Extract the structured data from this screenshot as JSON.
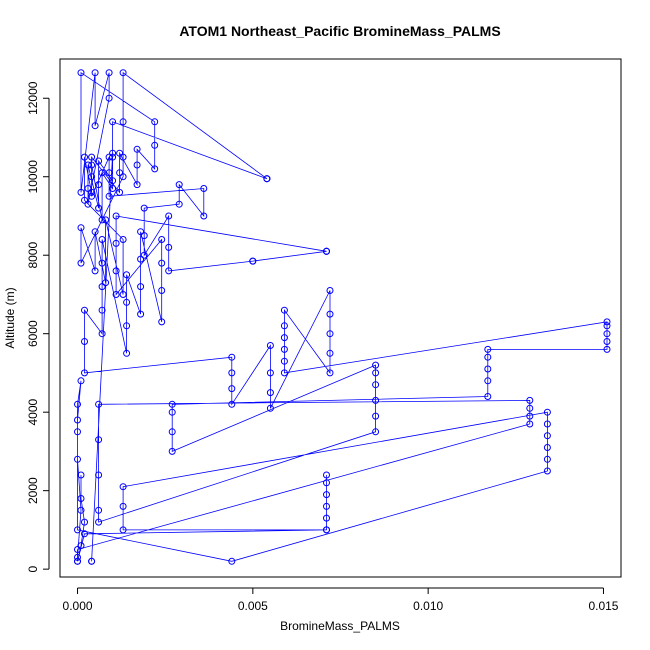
{
  "chart_data": {
    "type": "scatter",
    "title": "ATOM1 Northeast_Pacific BromineMass_PALMS",
    "xlabel": "BromineMass_PALMS",
    "ylabel": "Altitude (m)",
    "xlim": [
      -0.0005,
      0.0155
    ],
    "ylim": [
      -200,
      13000
    ],
    "xticks": [
      0.0,
      0.005,
      0.01,
      0.015
    ],
    "xtick_labels": [
      "0.000",
      "0.005",
      "0.010",
      "0.015"
    ],
    "yticks": [
      0,
      2000,
      4000,
      6000,
      8000,
      10000,
      12000
    ],
    "ytick_labels": [
      "0",
      "2000",
      "4000",
      "6000",
      "8000",
      "10000",
      "12000"
    ],
    "grid": false,
    "legend": "none",
    "color": "#0000ff",
    "marker": "open-circle",
    "connected": true,
    "series": [
      {
        "x": [
          0.0001,
          0.0001,
          0.0002,
          0.0001,
          0.0,
          0.0,
          0.0001,
          0.0,
          0.0,
          0.0,
          0.0001,
          0.0,
          0.0,
          0.0044,
          0.0134,
          0.0134,
          0.0134,
          0.0134,
          0.0134,
          0.0134,
          0.0013,
          0.0013,
          0.0013,
          0.0071,
          0.0071,
          0.0071,
          0.0071,
          0.0071,
          0.0071,
          0.0071,
          0.0002,
          0.0,
          0.0,
          0.0129,
          0.0129,
          0.0129,
          0.0129,
          0.0006,
          0.0006,
          0.0006,
          0.0006,
          0.0006,
          0.0085,
          0.0085,
          0.0085,
          0.0085,
          0.0085,
          0.0085,
          0.0027,
          0.0027,
          0.0027,
          0.0027,
          0.0117,
          0.0117,
          0.0117,
          0.0117,
          0.0117,
          0.0151,
          0.0151,
          0.0151,
          0.0151,
          0.0151,
          0.0059,
          0.0059,
          0.0059,
          0.0059,
          0.0059,
          0.0059,
          0.0072,
          0.0072,
          0.0072,
          0.0072,
          0.0072,
          0.0055,
          0.0055,
          0.0055,
          0.0055,
          0.0044,
          0.0044,
          0.0044,
          0.0044,
          0.0002,
          0.0002,
          0.0002,
          0.0007,
          0.0007,
          0.0007,
          0.0007,
          0.0007,
          0.0014,
          0.0014,
          0.0014,
          0.0014,
          0.0018,
          0.0018,
          0.0018,
          0.0018,
          0.0024,
          0.0024,
          0.0024,
          0.0024,
          0.0011,
          0.0011,
          0.0011,
          0.0011,
          0.0071,
          0.0071,
          0.0071,
          0.005,
          0.005,
          0.0026,
          0.0026,
          0.0026,
          0.0019,
          0.0019,
          0.0019,
          0.0029,
          0.0029,
          0.0036,
          0.0036,
          0.0009,
          0.0009,
          0.0009,
          0.0004,
          0.0004,
          0.0004,
          0.0012,
          0.0012,
          0.0012,
          0.0017,
          0.0017,
          0.0017,
          0.0022,
          0.0022,
          0.0022,
          0.0001,
          0.0001,
          0.0005,
          0.0005,
          0.0009,
          0.0009,
          0.0003,
          0.0003,
          0.0003,
          0.0006,
          0.0006,
          0.0006,
          0.001,
          0.001,
          0.001,
          0.0054,
          0.0054,
          0.0054,
          0.0013,
          0.0013,
          0.0013,
          0.0013,
          0.0001,
          0.0001,
          0.0005,
          0.0005,
          0.0008,
          0.0008,
          0.0013,
          0.0013,
          0.0002,
          0.0002,
          0.0004,
          0.0004,
          0.0007,
          0.0007,
          0.001,
          0.001,
          0.0004,
          0.0004
        ],
        "y": [
          2400,
          1800,
          1200,
          600,
          200,
          300,
          1500,
          2800,
          3500,
          4200,
          4800,
          3800,
          1000,
          200,
          2500,
          2800,
          3100,
          3400,
          3700,
          4000,
          2100,
          1600,
          1000,
          1000,
          1300,
          1600,
          1900,
          2200,
          2400,
          1000,
          900,
          200,
          500,
          3700,
          3900,
          4100,
          4300,
          4200,
          3300,
          2400,
          1500,
          1200,
          3500,
          3900,
          4300,
          4700,
          5000,
          5200,
          3000,
          3500,
          4000,
          4200,
          4400,
          4800,
          5100,
          5400,
          5600,
          5600,
          5800,
          6000,
          6200,
          6300,
          5000,
          5300,
          5600,
          5900,
          6200,
          6600,
          5000,
          5500,
          6000,
          6500,
          7100,
          4100,
          4500,
          5000,
          5700,
          4200,
          4600,
          5000,
          5400,
          5000,
          5800,
          6600,
          6000,
          6600,
          7200,
          7800,
          8400,
          5500,
          6200,
          6800,
          7500,
          6500,
          7200,
          7900,
          8600,
          6300,
          7100,
          7800,
          8400,
          7000,
          7600,
          8300,
          9000,
          8100,
          8100,
          8100,
          7850,
          7850,
          7600,
          8200,
          9000,
          8000,
          8500,
          9200,
          9300,
          9800,
          9000,
          9700,
          9500,
          10100,
          10500,
          9500,
          10000,
          10500,
          9600,
          10100,
          10600,
          9800,
          10300,
          10700,
          10200,
          10800,
          11400,
          12650,
          9600,
          12650,
          11300,
          12650,
          12000,
          9300,
          9700,
          10300,
          9200,
          9800,
          10400,
          9900,
          10500,
          11400,
          9950,
          9950,
          9950,
          12650,
          11400,
          10500,
          10000,
          7800,
          8700,
          7600,
          8600,
          7300,
          8900,
          7000,
          8400,
          9400,
          10500,
          9600,
          10300,
          8900,
          10100,
          9700,
          10600,
          200,
          200
        ]
      }
    ]
  }
}
